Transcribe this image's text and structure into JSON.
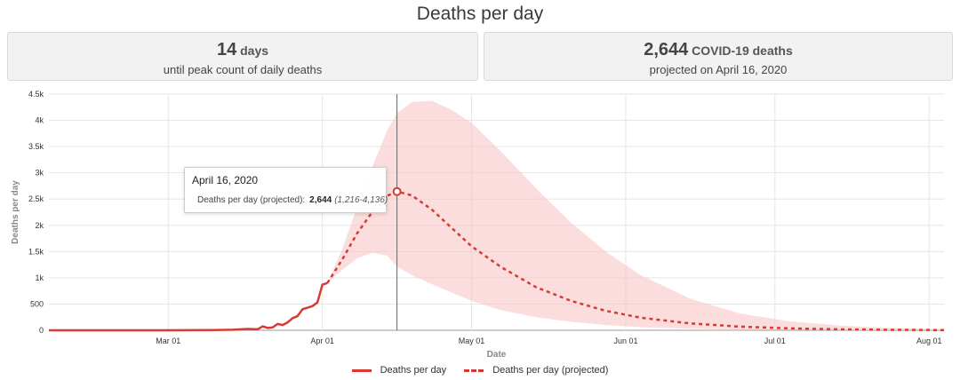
{
  "title": "Deaths per day",
  "stats": {
    "left": {
      "number": "14",
      "unit": "days",
      "subtitle": "until peak count of daily deaths"
    },
    "right": {
      "number": "2,644",
      "unit": "COVID-19 deaths",
      "subtitle": "projected on April 16, 2020"
    }
  },
  "tooltip": {
    "date": "April 16, 2020",
    "label": "Deaths per day (projected):",
    "value": "2,644",
    "range": "(1,216-4,136)"
  },
  "legend": {
    "actual": "Deaths per day",
    "projected": "Deaths per day (projected)"
  },
  "colors": {
    "line": "#d73a34",
    "band": "#f6c6c4",
    "crosshair": "#666666",
    "grid": "#e6e6e6"
  },
  "chart_data": {
    "type": "line",
    "title": "Deaths per day",
    "xlabel": "Date",
    "ylabel": "Deaths per day",
    "x_start": "2020-02-06",
    "x_end": "2020-08-04",
    "ylim": [
      0,
      4500
    ],
    "y_ticks": [
      0,
      500,
      1000,
      1500,
      2000,
      2500,
      3000,
      3500,
      4000,
      4500
    ],
    "y_tick_labels": [
      "0",
      "500",
      "1k",
      "1.5k",
      "2k",
      "2.5k",
      "3k",
      "3.5k",
      "4k",
      "4.5k"
    ],
    "x_ticks": [
      "2020-03-01",
      "2020-04-01",
      "2020-05-01",
      "2020-06-01",
      "2020-07-01",
      "2020-08-01"
    ],
    "x_tick_labels": [
      "Mar 01",
      "Apr 01",
      "May 01",
      "Jun 01",
      "Jul 01",
      "Aug 01"
    ],
    "grid": true,
    "legend_position": "bottom",
    "crosshair_date": "2020-04-16",
    "series": [
      {
        "name": "Deaths per day",
        "style": "solid",
        "points": [
          [
            "2020-02-06",
            0
          ],
          [
            "2020-02-29",
            1
          ],
          [
            "2020-03-05",
            2
          ],
          [
            "2020-03-10",
            4
          ],
          [
            "2020-03-14",
            10
          ],
          [
            "2020-03-17",
            25
          ],
          [
            "2020-03-19",
            20
          ],
          [
            "2020-03-20",
            75
          ],
          [
            "2020-03-21",
            45
          ],
          [
            "2020-03-22",
            55
          ],
          [
            "2020-03-23",
            120
          ],
          [
            "2020-03-24",
            100
          ],
          [
            "2020-03-25",
            150
          ],
          [
            "2020-03-26",
            230
          ],
          [
            "2020-03-27",
            270
          ],
          [
            "2020-03-28",
            400
          ],
          [
            "2020-03-29",
            430
          ],
          [
            "2020-03-30",
            460
          ],
          [
            "2020-03-31",
            530
          ],
          [
            "2020-04-01",
            870
          ],
          [
            "2020-04-02",
            900
          ]
        ]
      },
      {
        "name": "Deaths per day (projected)",
        "style": "dashed",
        "points": [
          [
            "2020-04-02",
            900
          ],
          [
            "2020-04-05",
            1350
          ],
          [
            "2020-04-08",
            1850
          ],
          [
            "2020-04-11",
            2250
          ],
          [
            "2020-04-14",
            2560
          ],
          [
            "2020-04-16",
            2644
          ],
          [
            "2020-04-19",
            2570
          ],
          [
            "2020-04-23",
            2300
          ],
          [
            "2020-04-27",
            1950
          ],
          [
            "2020-05-01",
            1600
          ],
          [
            "2020-05-07",
            1200
          ],
          [
            "2020-05-14",
            820
          ],
          [
            "2020-05-21",
            560
          ],
          [
            "2020-05-28",
            370
          ],
          [
            "2020-06-04",
            240
          ],
          [
            "2020-06-14",
            130
          ],
          [
            "2020-06-24",
            70
          ],
          [
            "2020-07-04",
            36
          ],
          [
            "2020-07-14",
            18
          ],
          [
            "2020-07-24",
            9
          ],
          [
            "2020-08-04",
            4
          ]
        ]
      }
    ],
    "band": {
      "name": "Deaths per day (projected) range",
      "points": [
        [
          "2020-04-02",
          900,
          900
        ],
        [
          "2020-04-05",
          1150,
          1550
        ],
        [
          "2020-04-08",
          1370,
          2350
        ],
        [
          "2020-04-11",
          1480,
          3100
        ],
        [
          "2020-04-14",
          1420,
          3800
        ],
        [
          "2020-04-16",
          1216,
          4136
        ],
        [
          "2020-04-19",
          1050,
          4350
        ],
        [
          "2020-04-23",
          880,
          4370
        ],
        [
          "2020-04-27",
          720,
          4200
        ],
        [
          "2020-05-01",
          560,
          3950
        ],
        [
          "2020-05-07",
          380,
          3400
        ],
        [
          "2020-05-14",
          250,
          2700
        ],
        [
          "2020-05-21",
          160,
          2050
        ],
        [
          "2020-05-28",
          100,
          1500
        ],
        [
          "2020-06-04",
          60,
          1050
        ],
        [
          "2020-06-14",
          30,
          600
        ],
        [
          "2020-06-24",
          15,
          320
        ],
        [
          "2020-07-04",
          7,
          170
        ],
        [
          "2020-07-14",
          4,
          90
        ],
        [
          "2020-07-24",
          2,
          45
        ],
        [
          "2020-08-04",
          1,
          20
        ]
      ]
    },
    "highlight_point": [
      "2020-04-16",
      2644
    ]
  }
}
